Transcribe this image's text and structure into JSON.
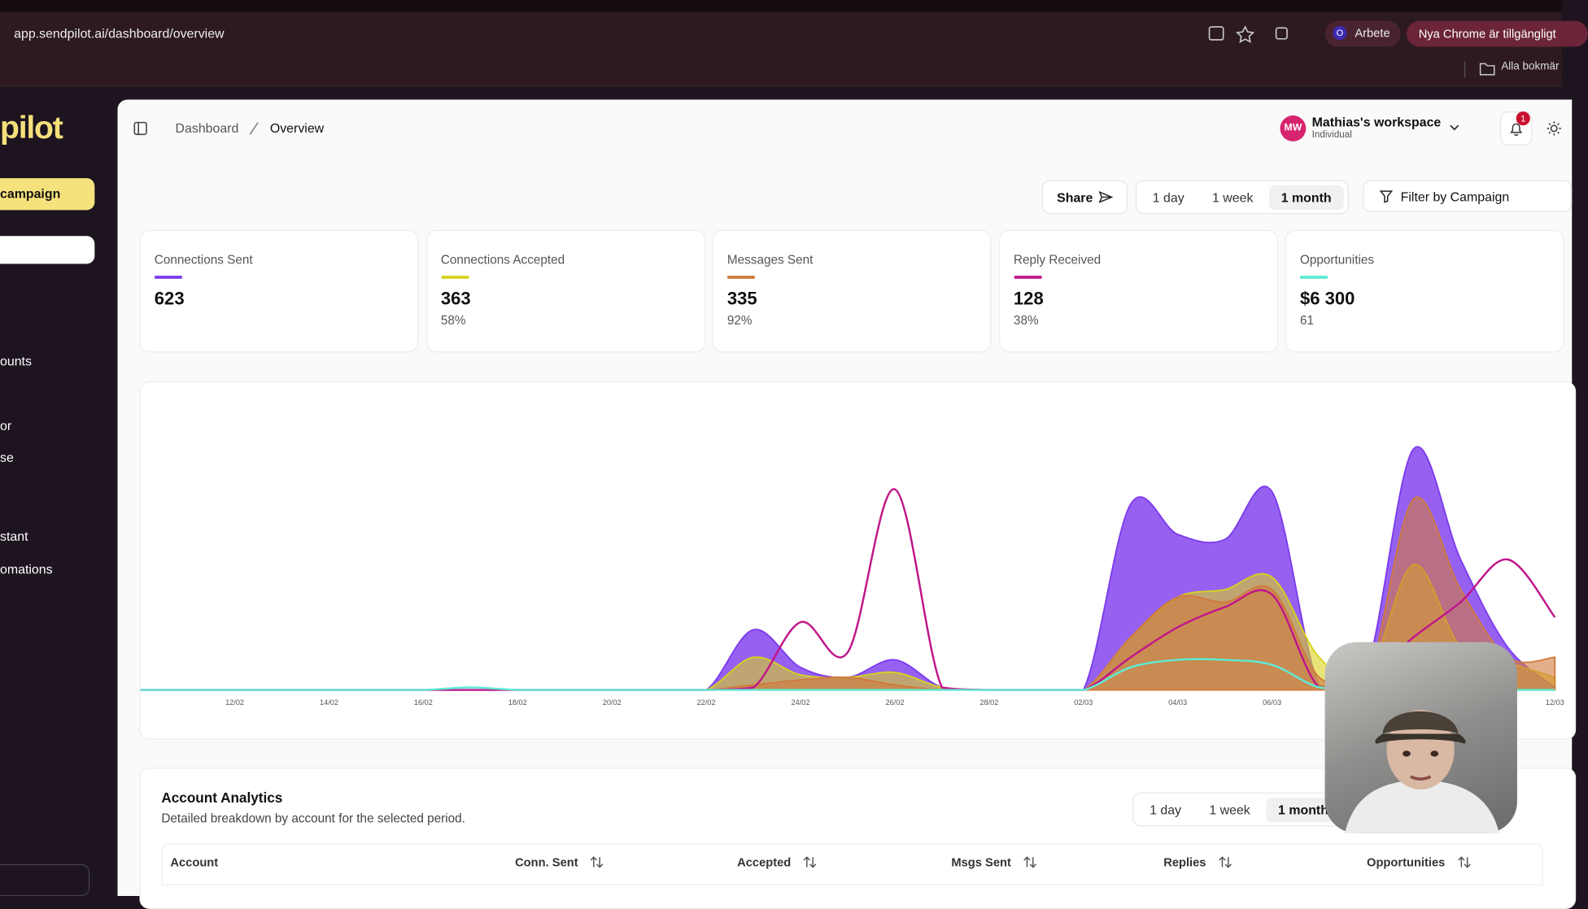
{
  "browser": {
    "url": "app.sendpilot.ai/dashboard/overview",
    "profile_initial": "O",
    "profile": "Arbete",
    "update": "Nya Chrome är tillgängligt",
    "bookmarks": "Alla bokmär"
  },
  "sidebar": {
    "logo": "pilot",
    "primary_button": "campaign",
    "items": [
      "ounts",
      "or",
      "se",
      "stant",
      "omations"
    ]
  },
  "header": {
    "breadcrumb": [
      "Dashboard",
      "Overview"
    ],
    "avatar": "MW",
    "workspace": "Mathias's workspace",
    "plan": "Individual",
    "notifications": "1"
  },
  "toolbar": {
    "share": "Share",
    "ranges": [
      "1 day",
      "1 week",
      "1 month"
    ],
    "filter": "Filter by Campaign"
  },
  "metrics": [
    {
      "value": "623"
    },
    {
      "value": "363",
      "sub": "58%"
    },
    {
      "value": "335",
      "sub": "92%"
    },
    {
      "value": "128",
      "sub": "38%"
    },
    {
      "value": "$6 300",
      "sub": "61"
    }
  ],
  "chart_data": {
    "type": "area",
    "ylim": [
      0,
      100
    ],
    "categories": [
      null,
      null,
      "12/02",
      null,
      "14/02",
      null,
      "16/02",
      null,
      "18/02",
      null,
      "20/02",
      null,
      "22/02",
      null,
      "24/02",
      null,
      "26/02",
      null,
      "28/02",
      null,
      "02/03",
      null,
      "04/03",
      null,
      "06/03",
      null,
      null,
      null,
      null,
      null,
      "12/03"
    ],
    "series": [
      {
        "name": "Connections Sent",
        "color": "#7c3aed",
        "area": true,
        "values": [
          0,
          0,
          0,
          0,
          0,
          0,
          0,
          0,
          0,
          0,
          0,
          0,
          0,
          24,
          9,
          5,
          12,
          1,
          0,
          0,
          0,
          74,
          62,
          60,
          79,
          2,
          8,
          96,
          52,
          17,
          1
        ]
      },
      {
        "name": "Connections Accepted",
        "color": "#d8d21c",
        "area": true,
        "values": [
          0,
          0,
          0,
          0,
          0,
          0,
          0,
          0,
          0,
          0,
          0,
          0,
          0,
          13,
          6,
          5,
          7,
          1,
          0,
          0,
          0,
          21,
          37,
          40,
          45,
          13,
          5,
          50,
          17,
          11,
          5
        ]
      },
      {
        "name": "Messages Sent",
        "color": "#d07a3c",
        "area": true,
        "values": [
          0,
          0,
          0,
          0,
          0,
          0,
          0,
          0,
          0,
          0,
          0,
          0,
          0,
          2,
          4,
          5,
          2,
          0,
          0,
          0,
          0,
          21,
          37,
          35,
          40,
          5,
          3,
          76,
          40,
          13,
          13
        ]
      },
      {
        "name": "Reply Received",
        "color": "#c0168a",
        "area": false,
        "values": [
          0,
          0,
          0,
          0,
          0,
          0,
          0,
          0,
          0,
          0,
          0,
          0,
          0,
          1,
          27,
          15,
          80,
          1,
          0,
          0,
          0,
          13,
          25,
          33,
          38,
          1,
          5,
          21,
          35,
          52,
          29
        ]
      },
      {
        "name": "Opportunities",
        "color": "#5eead4",
        "area": false,
        "values": [
          0,
          0,
          0,
          0,
          0,
          0,
          0,
          1,
          0,
          0,
          0,
          0,
          0,
          0,
          0,
          0,
          0,
          0,
          0,
          0,
          0,
          9,
          12,
          12,
          10,
          1,
          0,
          0,
          0,
          0,
          0
        ]
      }
    ]
  },
  "table": {
    "title": "Account Analytics",
    "subtitle": "Detailed breakdown by account for the selected period.",
    "ranges": [
      "1 day",
      "1 week",
      "1 month"
    ],
    "columns": [
      "Account",
      "Conn. Sent",
      "Accepted",
      "Msgs Sent",
      "Replies",
      "Opportunities"
    ]
  }
}
